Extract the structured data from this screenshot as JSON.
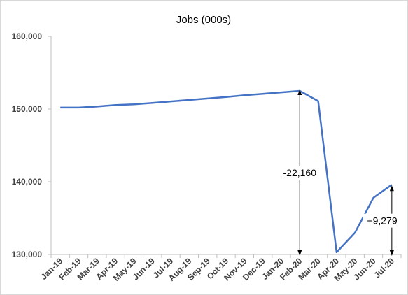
{
  "chart_data": {
    "type": "line",
    "title": "Jobs (000s)",
    "xlabel": "",
    "ylabel": "",
    "ylim": [
      130000,
      160000
    ],
    "yticks": [
      130000,
      140000,
      150000,
      160000
    ],
    "ytick_labels": [
      "130,000",
      "140,000",
      "150,000",
      "160,000"
    ],
    "grid": false,
    "categories": [
      "Jan-19",
      "Feb-19",
      "Mar-19",
      "Apr-19",
      "May-19",
      "Jun-19",
      "Jul-19",
      "Aug-19",
      "Sep-19",
      "Oct-19",
      "Nov-19",
      "Dec-19",
      "Jan-20",
      "Feb-20",
      "Mar-20",
      "Apr-20",
      "May-20",
      "Jun-20",
      "Jul-20"
    ],
    "series": [
      {
        "color": "#4472c4",
        "values": [
          150200,
          150200,
          150350,
          150550,
          150650,
          150850,
          151050,
          151250,
          151450,
          151650,
          151900,
          152100,
          152300,
          152500,
          151100,
          130300,
          133000,
          137800,
          139600
        ]
      }
    ],
    "annotations": [
      {
        "label": "-22,160",
        "from_category": "Feb-20",
        "from_value": 152500,
        "to_value": 130000
      },
      {
        "label": "+9,279",
        "from_category": "Jul-20",
        "from_value": 130000,
        "to_value": 139300
      }
    ]
  }
}
